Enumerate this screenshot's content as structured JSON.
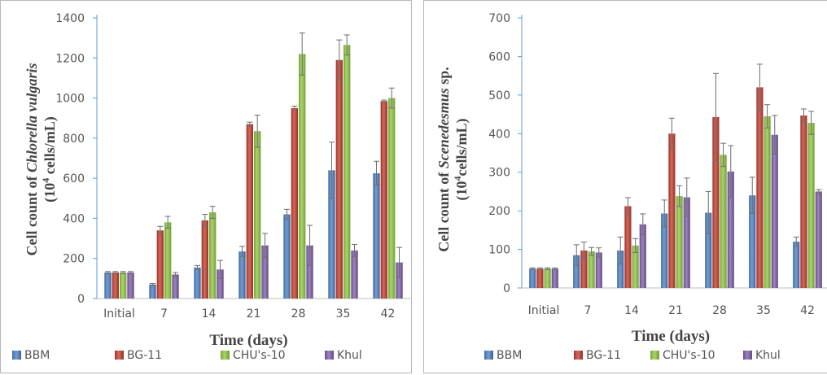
{
  "chart_data": [
    {
      "type": "bar",
      "categories": [
        "Initial",
        "7",
        "14",
        "21",
        "28",
        "35",
        "42"
      ],
      "xlabel": "Time (days)",
      "ylabel_parts": [
        "Cell count of ",
        "Chlorella vulgaris"
      ],
      "ylabel_line2": [
        "(10",
        "4",
        " cells/mL)"
      ],
      "ylim": [
        0,
        1400
      ],
      "yticks": [
        0,
        200,
        400,
        600,
        800,
        1000,
        1200,
        1400
      ],
      "grid": false,
      "legend_position": "bottom",
      "series": [
        {
          "name": "BBM",
          "color": "#4a7dc2",
          "values": [
            130,
            70,
            155,
            235,
            420,
            640,
            625
          ],
          "errors": [
            5,
            5,
            10,
            25,
            25,
            140,
            60
          ]
        },
        {
          "name": "BG-11",
          "color": "#c0392b",
          "values": [
            130,
            340,
            390,
            870,
            950,
            1190,
            985
          ],
          "errors": [
            5,
            20,
            30,
            10,
            10,
            100,
            5
          ]
        },
        {
          "name": "CHU's-10",
          "color": "#8dc53e",
          "values": [
            130,
            380,
            430,
            835,
            1220,
            1265,
            1000
          ],
          "errors": [
            5,
            30,
            30,
            80,
            105,
            50,
            50
          ]
        },
        {
          "name": "Khul",
          "color": "#7b5ca8",
          "values": [
            130,
            120,
            145,
            265,
            265,
            240,
            180
          ],
          "errors": [
            5,
            10,
            45,
            60,
            100,
            30,
            75
          ]
        }
      ]
    },
    {
      "type": "bar",
      "categories": [
        "Initial",
        "7",
        "14",
        "21",
        "28",
        "35",
        "42"
      ],
      "xlabel": "Time (days)",
      "ylabel_parts": [
        "Cell count of ",
        "Scenedesmus",
        " sp."
      ],
      "ylabel_line2": [
        "(10",
        "4",
        "cells/mL)"
      ],
      "ylim": [
        0,
        700
      ],
      "yticks": [
        0,
        100,
        200,
        300,
        400,
        500,
        600,
        700
      ],
      "grid": false,
      "legend_position": "bottom",
      "series": [
        {
          "name": "BBM",
          "color": "#4a7dc2",
          "values": [
            50,
            85,
            97,
            193,
            195,
            240,
            120
          ],
          "errors": [
            2,
            27,
            35,
            35,
            55,
            47,
            12
          ]
        },
        {
          "name": "BG-11",
          "color": "#c0392b",
          "values": [
            50,
            97,
            212,
            400,
            443,
            520,
            447
          ],
          "errors": [
            2,
            22,
            22,
            40,
            113,
            60,
            17
          ]
        },
        {
          "name": "CHU's-10",
          "color": "#8dc53e",
          "values": [
            50,
            95,
            110,
            238,
            345,
            445,
            428
          ],
          "errors": [
            2,
            10,
            18,
            27,
            30,
            30,
            30
          ]
        },
        {
          "name": "Khul",
          "color": "#7b5ca8",
          "values": [
            50,
            92,
            165,
            235,
            302,
            397,
            250
          ],
          "errors": [
            2,
            12,
            27,
            50,
            67,
            50,
            5
          ]
        }
      ]
    }
  ]
}
